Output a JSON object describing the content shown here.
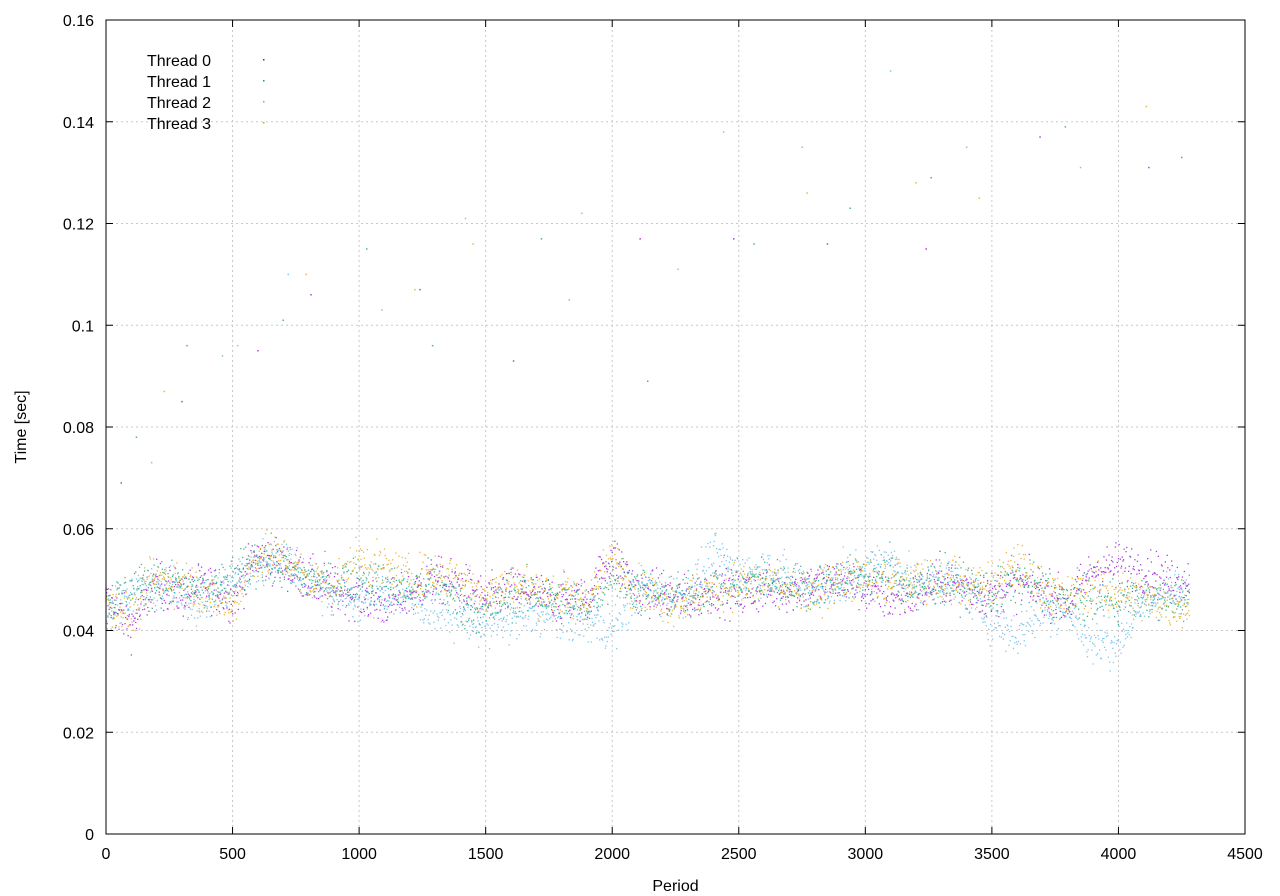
{
  "chart_data": {
    "type": "scatter",
    "title": "",
    "xlabel": "Period",
    "ylabel": "Time [sec]",
    "xlim": [
      0,
      4500
    ],
    "ylim": [
      0,
      0.16
    ],
    "x_ticks": [
      "0",
      "500",
      "1000",
      "1500",
      "2000",
      "2500",
      "3000",
      "3500",
      "4000",
      "4500"
    ],
    "y_ticks": [
      "0",
      "0.02",
      "0.04",
      "0.06",
      "0.08",
      "0.1",
      "0.12",
      "0.14",
      "0.16"
    ],
    "grid": true,
    "legend_position": "top-left",
    "x_range_of_data": [
      0,
      4280
    ],
    "series": [
      {
        "name": "Thread 0",
        "color": "#9400d3",
        "points": [
          [
            0,
            0.046
          ],
          [
            100,
            0.041
          ],
          [
            200,
            0.049
          ],
          [
            300,
            0.047
          ],
          [
            400,
            0.049
          ],
          [
            500,
            0.046
          ],
          [
            600,
            0.055
          ],
          [
            700,
            0.053
          ],
          [
            800,
            0.05
          ],
          [
            900,
            0.048
          ],
          [
            1000,
            0.047
          ],
          [
            1100,
            0.045
          ],
          [
            1200,
            0.047
          ],
          [
            1300,
            0.05
          ],
          [
            1400,
            0.049
          ],
          [
            1500,
            0.046
          ],
          [
            1600,
            0.048
          ],
          [
            1700,
            0.047
          ],
          [
            1800,
            0.046
          ],
          [
            1900,
            0.046
          ],
          [
            2000,
            0.055
          ],
          [
            2100,
            0.048
          ],
          [
            2200,
            0.047
          ],
          [
            2300,
            0.046
          ],
          [
            2400,
            0.048
          ],
          [
            2500,
            0.047
          ],
          [
            2600,
            0.048
          ],
          [
            2700,
            0.048
          ],
          [
            2800,
            0.049
          ],
          [
            2900,
            0.05
          ],
          [
            3000,
            0.048
          ],
          [
            3100,
            0.046
          ],
          [
            3200,
            0.047
          ],
          [
            3300,
            0.05
          ],
          [
            3400,
            0.048
          ],
          [
            3500,
            0.047
          ],
          [
            3600,
            0.049
          ],
          [
            3700,
            0.048
          ],
          [
            3800,
            0.045
          ],
          [
            3900,
            0.052
          ],
          [
            4000,
            0.053
          ],
          [
            4100,
            0.052
          ],
          [
            4200,
            0.05
          ],
          [
            4280,
            0.05
          ]
        ]
      },
      {
        "name": "Thread 1",
        "color": "#009e73",
        "points": [
          [
            0,
            0.045
          ],
          [
            100,
            0.048
          ],
          [
            200,
            0.05
          ],
          [
            300,
            0.049
          ],
          [
            400,
            0.047
          ],
          [
            500,
            0.05
          ],
          [
            600,
            0.054
          ],
          [
            700,
            0.052
          ],
          [
            800,
            0.05
          ],
          [
            900,
            0.049
          ],
          [
            1000,
            0.05
          ],
          [
            1100,
            0.049
          ],
          [
            1200,
            0.048
          ],
          [
            1300,
            0.05
          ],
          [
            1400,
            0.045
          ],
          [
            1500,
            0.043
          ],
          [
            1600,
            0.047
          ],
          [
            1700,
            0.047
          ],
          [
            1800,
            0.046
          ],
          [
            1900,
            0.045
          ],
          [
            2000,
            0.051
          ],
          [
            2100,
            0.048
          ],
          [
            2200,
            0.047
          ],
          [
            2300,
            0.047
          ],
          [
            2400,
            0.049
          ],
          [
            2500,
            0.049
          ],
          [
            2600,
            0.05
          ],
          [
            2700,
            0.049
          ],
          [
            2800,
            0.048
          ],
          [
            2900,
            0.05
          ],
          [
            3000,
            0.05
          ],
          [
            3100,
            0.051
          ],
          [
            3200,
            0.048
          ],
          [
            3300,
            0.05
          ],
          [
            3400,
            0.049
          ],
          [
            3500,
            0.047
          ],
          [
            3600,
            0.05
          ],
          [
            3700,
            0.048
          ],
          [
            3800,
            0.046
          ],
          [
            3900,
            0.046
          ],
          [
            4000,
            0.046
          ],
          [
            4100,
            0.047
          ],
          [
            4200,
            0.046
          ],
          [
            4280,
            0.047
          ]
        ]
      },
      {
        "name": "Thread 2",
        "color": "#56b4e9",
        "points": [
          [
            0,
            0.044
          ],
          [
            100,
            0.047
          ],
          [
            200,
            0.049
          ],
          [
            300,
            0.046
          ],
          [
            400,
            0.046
          ],
          [
            500,
            0.05
          ],
          [
            600,
            0.053
          ],
          [
            700,
            0.055
          ],
          [
            800,
            0.05
          ],
          [
            900,
            0.047
          ],
          [
            1000,
            0.046
          ],
          [
            1100,
            0.047
          ],
          [
            1200,
            0.046
          ],
          [
            1300,
            0.044
          ],
          [
            1400,
            0.043
          ],
          [
            1500,
            0.041
          ],
          [
            1600,
            0.042
          ],
          [
            1700,
            0.043
          ],
          [
            1800,
            0.042
          ],
          [
            1900,
            0.042
          ],
          [
            2000,
            0.04
          ],
          [
            2100,
            0.048
          ],
          [
            2200,
            0.047
          ],
          [
            2300,
            0.047
          ],
          [
            2400,
            0.055
          ],
          [
            2500,
            0.051
          ],
          [
            2600,
            0.052
          ],
          [
            2700,
            0.05
          ],
          [
            2800,
            0.049
          ],
          [
            2900,
            0.049
          ],
          [
            3000,
            0.052
          ],
          [
            3100,
            0.054
          ],
          [
            3200,
            0.049
          ],
          [
            3300,
            0.05
          ],
          [
            3400,
            0.048
          ],
          [
            3500,
            0.042
          ],
          [
            3600,
            0.039
          ],
          [
            3700,
            0.044
          ],
          [
            3800,
            0.044
          ],
          [
            3900,
            0.037
          ],
          [
            4000,
            0.038
          ],
          [
            4100,
            0.045
          ],
          [
            4200,
            0.048
          ],
          [
            4280,
            0.046
          ]
        ]
      },
      {
        "name": "Thread 3",
        "color": "#e69f00",
        "points": [
          [
            0,
            0.046
          ],
          [
            100,
            0.043
          ],
          [
            200,
            0.05
          ],
          [
            300,
            0.05
          ],
          [
            400,
            0.047
          ],
          [
            500,
            0.045
          ],
          [
            600,
            0.055
          ],
          [
            700,
            0.054
          ],
          [
            800,
            0.05
          ],
          [
            900,
            0.049
          ],
          [
            1000,
            0.054
          ],
          [
            1100,
            0.052
          ],
          [
            1200,
            0.05
          ],
          [
            1300,
            0.051
          ],
          [
            1400,
            0.05
          ],
          [
            1500,
            0.047
          ],
          [
            1600,
            0.049
          ],
          [
            1700,
            0.048
          ],
          [
            1800,
            0.047
          ],
          [
            1900,
            0.046
          ],
          [
            2000,
            0.054
          ],
          [
            2100,
            0.048
          ],
          [
            2200,
            0.046
          ],
          [
            2300,
            0.046
          ],
          [
            2400,
            0.048
          ],
          [
            2500,
            0.049
          ],
          [
            2600,
            0.049
          ],
          [
            2700,
            0.048
          ],
          [
            2800,
            0.047
          ],
          [
            2900,
            0.051
          ],
          [
            3000,
            0.05
          ],
          [
            3100,
            0.049
          ],
          [
            3200,
            0.05
          ],
          [
            3300,
            0.05
          ],
          [
            3400,
            0.049
          ],
          [
            3500,
            0.049
          ],
          [
            3600,
            0.053
          ],
          [
            3700,
            0.048
          ],
          [
            3800,
            0.046
          ],
          [
            3900,
            0.049
          ],
          [
            4000,
            0.047
          ],
          [
            4100,
            0.046
          ],
          [
            4200,
            0.045
          ],
          [
            4280,
            0.045
          ]
        ]
      }
    ],
    "outliers": [
      [
        60,
        0.069
      ],
      [
        120,
        0.078
      ],
      [
        180,
        0.073
      ],
      [
        230,
        0.087
      ],
      [
        300,
        0.085
      ],
      [
        320,
        0.096
      ],
      [
        460,
        0.094
      ],
      [
        520,
        0.096
      ],
      [
        600,
        0.095
      ],
      [
        700,
        0.101
      ],
      [
        720,
        0.11
      ],
      [
        790,
        0.11
      ],
      [
        810,
        0.106
      ],
      [
        1030,
        0.115
      ],
      [
        1090,
        0.103
      ],
      [
        1220,
        0.107
      ],
      [
        1240,
        0.107
      ],
      [
        1290,
        0.096
      ],
      [
        1420,
        0.121
      ],
      [
        1450,
        0.116
      ],
      [
        1610,
        0.093
      ],
      [
        1720,
        0.117
      ],
      [
        1830,
        0.105
      ],
      [
        1880,
        0.122
      ],
      [
        2110,
        0.117
      ],
      [
        2140,
        0.089
      ],
      [
        2260,
        0.111
      ],
      [
        2440,
        0.138
      ],
      [
        2480,
        0.117
      ],
      [
        2560,
        0.116
      ],
      [
        2750,
        0.135
      ],
      [
        2770,
        0.126
      ],
      [
        2850,
        0.116
      ],
      [
        2940,
        0.123
      ],
      [
        3100,
        0.15
      ],
      [
        3200,
        0.128
      ],
      [
        3240,
        0.115
      ],
      [
        3260,
        0.129
      ],
      [
        3400,
        0.135
      ],
      [
        3450,
        0.125
      ],
      [
        3690,
        0.137
      ],
      [
        3790,
        0.139
      ],
      [
        3850,
        0.131
      ],
      [
        4110,
        0.143
      ],
      [
        4120,
        0.131
      ],
      [
        4250,
        0.133
      ]
    ]
  }
}
